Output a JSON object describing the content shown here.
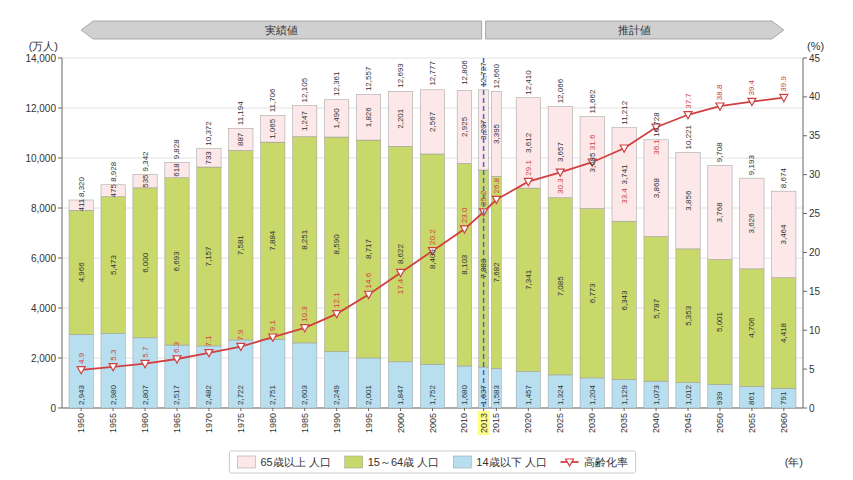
{
  "chart_data": {
    "type": "bar",
    "stacked": true,
    "data_labels": true,
    "grid": true,
    "legend": "bottom",
    "xlabel": "(年)",
    "ylabel": "(万人)",
    "y2label": "(%)",
    "x": [
      1950,
      1955,
      1960,
      1965,
      1970,
      1975,
      1980,
      1985,
      1990,
      1995,
      2000,
      2005,
      2010,
      2013,
      2015,
      2020,
      2025,
      2030,
      2035,
      2040,
      2045,
      2050,
      2055,
      2060
    ],
    "xlim": [
      1947,
      2063
    ],
    "xticks": [
      1950,
      1955,
      1960,
      1965,
      1970,
      1975,
      1980,
      1985,
      1990,
      1995,
      2000,
      2005,
      2010,
      2013,
      2015,
      2020,
      2025,
      2030,
      2035,
      2040,
      2045,
      2050,
      2055,
      2060
    ],
    "ylim": [
      0,
      14000
    ],
    "yticks": [
      0,
      {
        "value": 2000,
        "label": "2,000"
      },
      {
        "value": 4000,
        "label": "4,000"
      },
      {
        "value": 6000,
        "label": "6,000"
      },
      {
        "value": 8000,
        "label": "8,000"
      },
      {
        "value": 10000,
        "label": "10,000"
      },
      {
        "value": 12000,
        "label": "12,000"
      },
      {
        "value": 14000,
        "label": "14,000"
      }
    ],
    "y2lim": [
      0,
      45
    ],
    "y2ticks": [
      0,
      5,
      10,
      15,
      20,
      25,
      30,
      35,
      40,
      45
    ],
    "series": [
      {
        "name": "14歳以下 人口",
        "color": "#b8dff0",
        "values": [
          2943,
          2980,
          2807,
          2517,
          2482,
          2722,
          2751,
          2603,
          2249,
          2001,
          1847,
          1752,
          1680,
          1637,
          1583,
          1457,
          1324,
          1204,
          1129,
          1073,
          1012,
          939,
          861,
          791
        ],
        "value_labels": [
          "2,943",
          "2,980",
          "2,807",
          "2,517",
          "2,482",
          "2,722",
          "2,751",
          "2,603",
          "2,249",
          "2,001",
          "1,847",
          "1,752",
          "1,680",
          "1,637",
          "1,583",
          "1,457",
          "1,324",
          "1,204",
          "1,129",
          "1,073",
          "1,012",
          "939",
          "861",
          "791"
        ]
      },
      {
        "name": "15～64歳 人口",
        "color": "#c8d86a",
        "values": [
          4966,
          5473,
          6000,
          6693,
          7157,
          7581,
          7884,
          8251,
          8590,
          8717,
          8622,
          8409,
          8103,
          7883,
          7682,
          7341,
          7085,
          6773,
          6343,
          5787,
          5353,
          5001,
          4706,
          4418
        ],
        "value_labels": [
          "4,966",
          "5,473",
          "6,000",
          "6,693",
          "7,157",
          "7,581",
          "7,884",
          "8,251",
          "8,590",
          "8,717",
          "8,622",
          "8,409",
          "8,103",
          "7,883",
          "7,682",
          "7,341",
          "7,085",
          "6,773",
          "6,343",
          "5,787",
          "5,353",
          "5,001",
          "4,706",
          "4,418"
        ]
      },
      {
        "name": "65歳以上 人口",
        "color": "#fce8e8",
        "values": [
          411,
          475,
          535,
          618,
          733,
          887,
          1065,
          1247,
          1490,
          1826,
          2201,
          2567,
          2925,
          3207,
          3395,
          3612,
          3657,
          3685,
          3741,
          3868,
          3856,
          3768,
          3626,
          3464
        ],
        "value_labels": [
          "411",
          "475",
          "535",
          "618",
          "733",
          "887",
          "1,065",
          "1,247",
          "1,490",
          "1,826",
          "2,201",
          "2,567",
          "2,925",
          "3,207",
          "3,395",
          "3,612",
          "3,657",
          "3,685",
          "3,741",
          "3,868",
          "3,856",
          "3,768",
          "3,626",
          "3,464"
        ]
      },
      {
        "name": "高齢化率",
        "type": "line",
        "axis": "y2",
        "color": "#d04040",
        "marker": "triangle-down",
        "values": [
          4.9,
          5.3,
          5.7,
          6.3,
          7.1,
          7.9,
          9.1,
          10.3,
          12.1,
          14.6,
          17.4,
          20.2,
          23.0,
          25.2,
          26.8,
          29.1,
          30.3,
          31.6,
          33.4,
          36.1,
          37.7,
          38.8,
          39.4,
          39.9
        ],
        "value_labels": [
          "4.9",
          "5.3",
          "5.7",
          "6.3",
          "7.1",
          "7.9",
          "9.1",
          "10.3",
          "12.1",
          "14.6",
          "17.4",
          "20.2",
          "23.0",
          "25.2",
          "26.8",
          "29.1",
          "30.3",
          "31.6",
          "33.4",
          "36.1",
          "37.7",
          "38.8",
          "39.4",
          "39.9"
        ]
      }
    ],
    "totals": {
      "values": [
        8320,
        8928,
        9342,
        9828,
        10372,
        11194,
        11706,
        12105,
        12361,
        12557,
        12693,
        12777,
        12806,
        12727,
        12660,
        12410,
        12066,
        11662,
        11212,
        10728,
        10221,
        9708,
        9193,
        8674
      ],
      "value_labels": [
        "8,320",
        "8,928",
        "9,342",
        "9,828",
        "10,372",
        "11,194",
        "11,706",
        "12,105",
        "12,361",
        "12,557",
        "12,693",
        "12,777",
        "12,806",
        "12,727",
        "12,660",
        "12,410",
        "12,066",
        "11,662",
        "11,212",
        "10,728",
        "10,221",
        "9,708",
        "9,193",
        "8,674"
      ]
    },
    "annotations": [
      {
        "type": "vline",
        "x": 2013,
        "color": "#4466cc",
        "line_style": "dashed"
      },
      {
        "type": "arrow",
        "text": "実績値",
        "x": [
          2013,
          1950
        ],
        "color": "#d0d0d0"
      },
      {
        "type": "arrow",
        "text": "推計値",
        "x": [
          2013,
          2060
        ],
        "color": "#d0d0d0"
      }
    ]
  }
}
